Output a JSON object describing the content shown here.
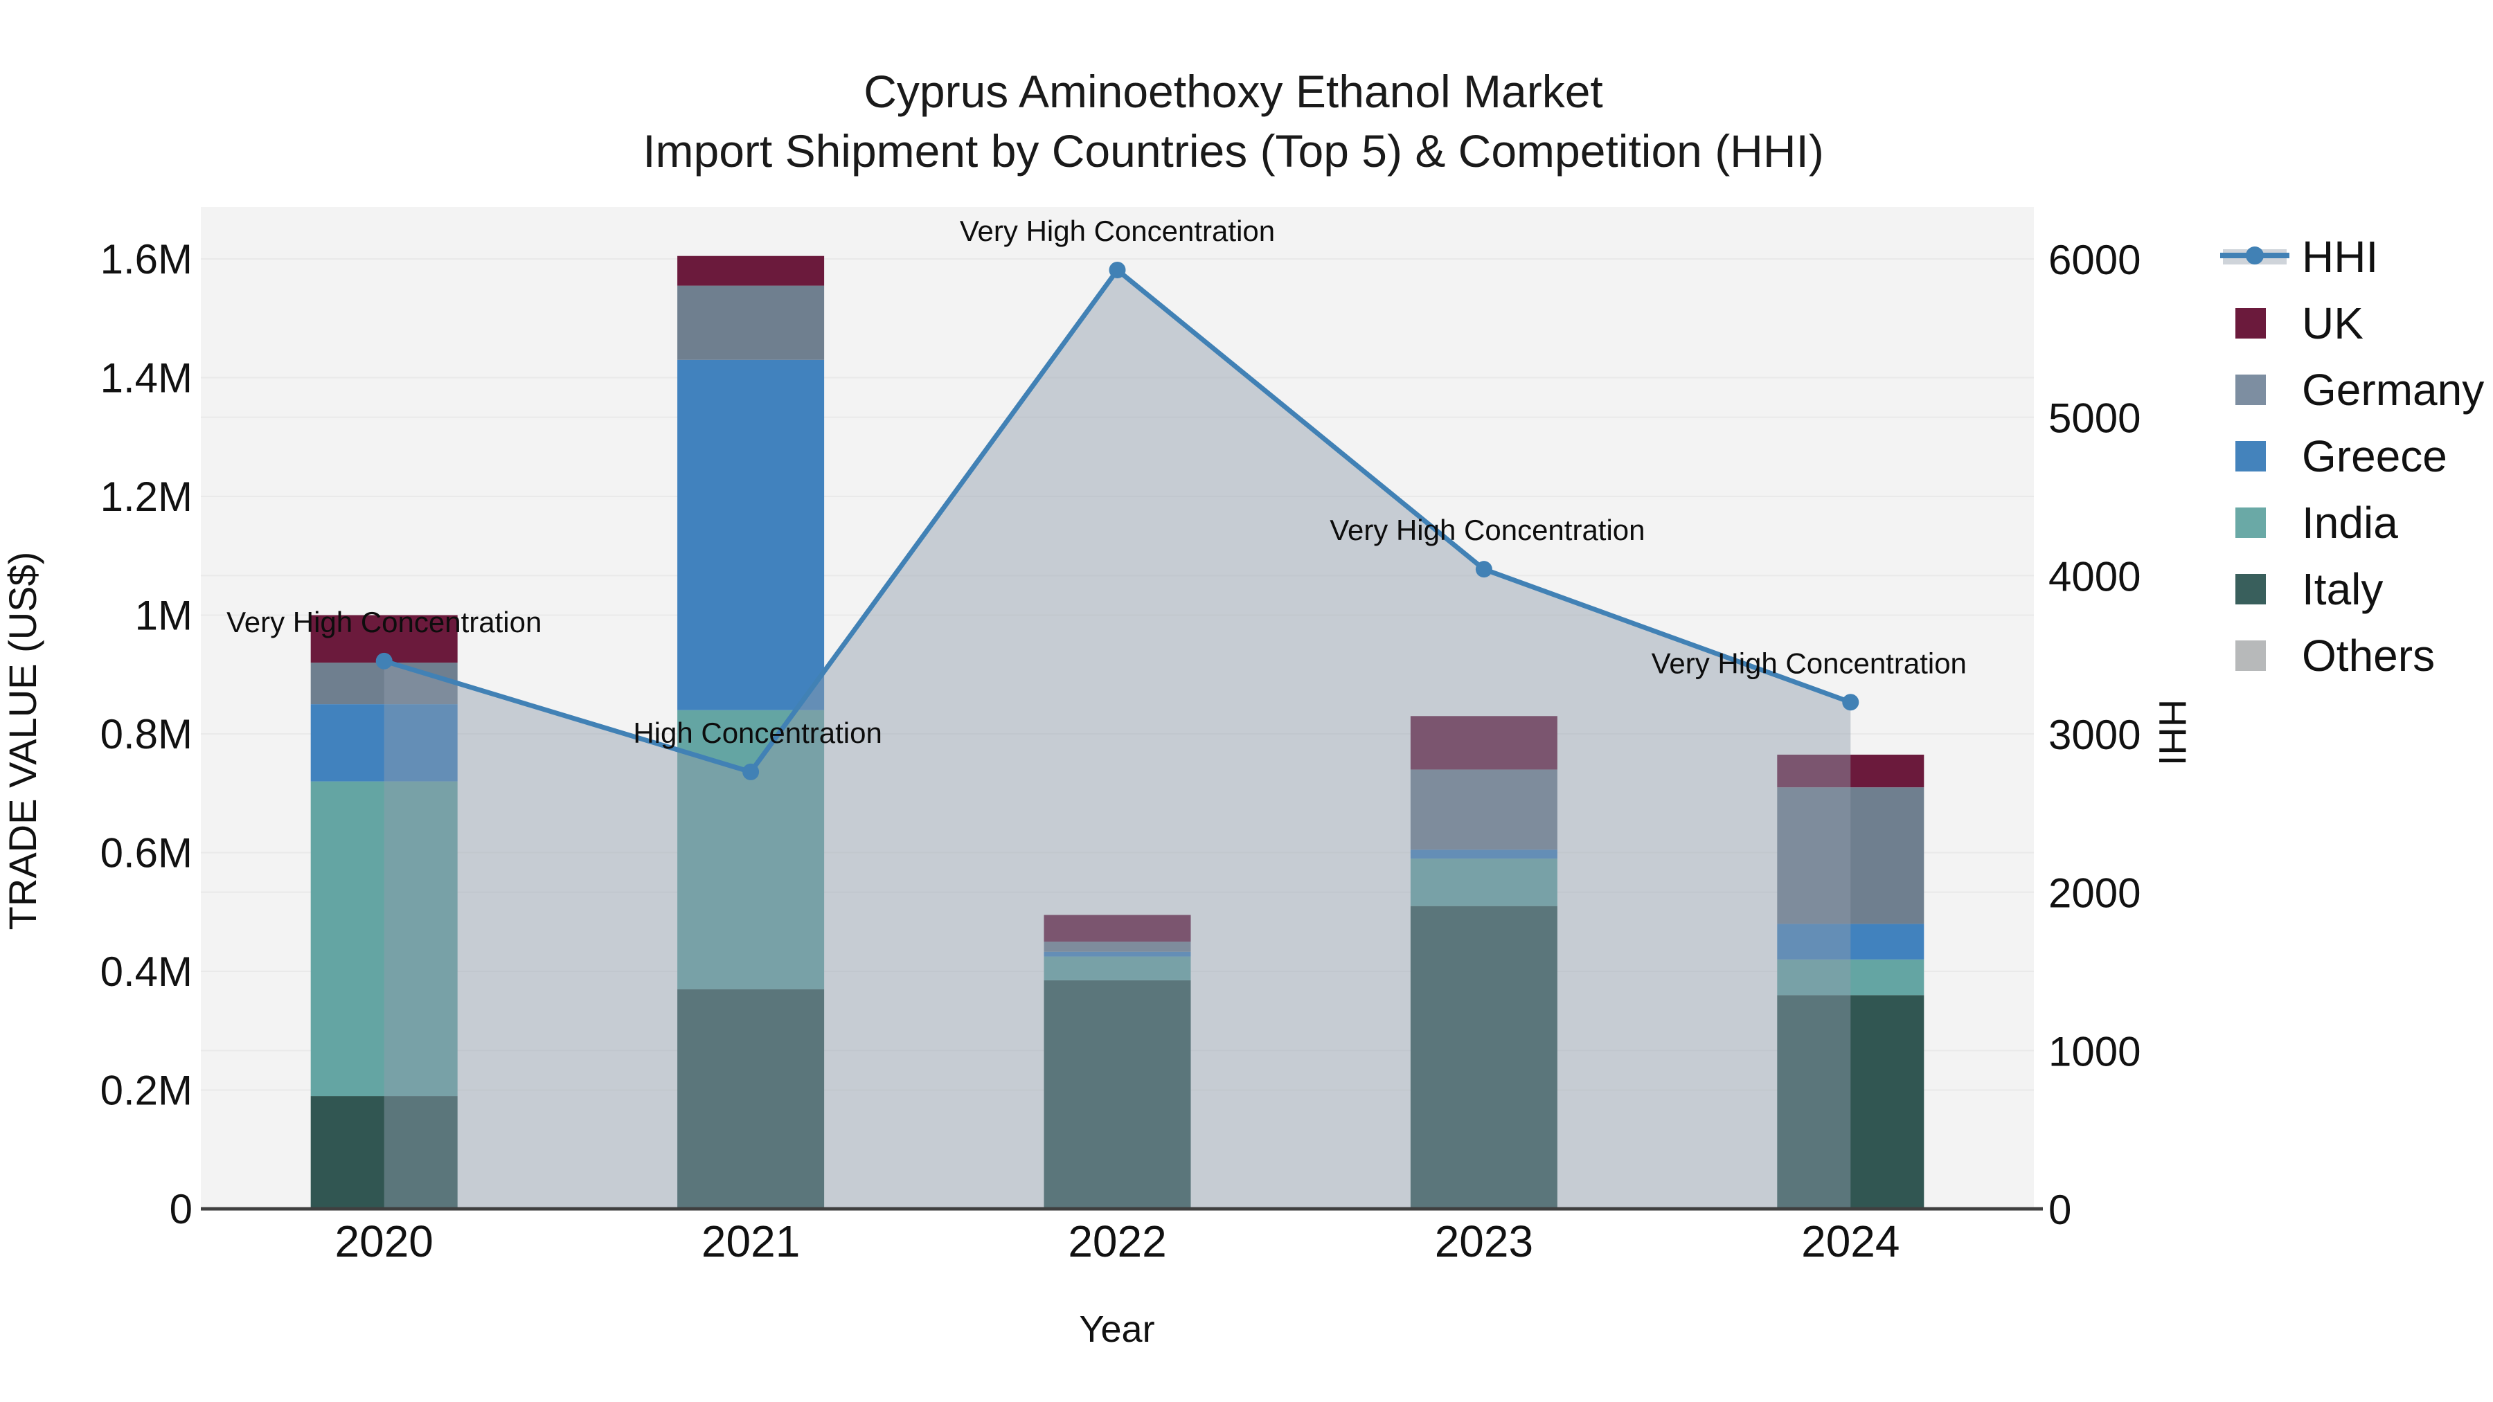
{
  "title": {
    "line1": "Cyprus Aminoethoxy Ethanol Market",
    "line2": "Import Shipment by Countries (Top 5) & Competition (HHI)"
  },
  "axes": {
    "x_title": "Year",
    "y_left_title": "TRADE VALUE (US$)",
    "y_right_title": "HHI",
    "y_left_ticks": [
      "0",
      "0.2M",
      "0.4M",
      "0.6M",
      "0.8M",
      "1M",
      "1.2M",
      "1.4M",
      "1.6M"
    ],
    "y_left_tick_values": [
      0,
      200000,
      400000,
      600000,
      800000,
      1000000,
      1200000,
      1400000,
      1600000
    ],
    "y_left_max": 1600000,
    "y_right_ticks": [
      "0",
      "1000",
      "2000",
      "3000",
      "4000",
      "5000",
      "6000"
    ],
    "y_right_tick_values": [
      0,
      1000,
      2000,
      3000,
      4000,
      5000,
      6000
    ],
    "y_right_max": 6000
  },
  "chart_data": {
    "type": "bar+line",
    "categories": [
      "2020",
      "2021",
      "2022",
      "2023",
      "2024"
    ],
    "stack_order": [
      "Italy",
      "India",
      "Greece",
      "Germany",
      "UK"
    ],
    "series": [
      {
        "name": "Italy",
        "color": "#315652",
        "values": [
          190000,
          370000,
          385000,
          510000,
          360000
        ]
      },
      {
        "name": "India",
        "color": "#64A5A3",
        "values": [
          530000,
          470000,
          40000,
          80000,
          60000
        ]
      },
      {
        "name": "Greece",
        "color": "#4182BE",
        "values": [
          130000,
          590000,
          8000,
          15000,
          60000
        ]
      },
      {
        "name": "Germany",
        "color": "#6F7F8F",
        "values": [
          70000,
          125000,
          17000,
          135000,
          230000
        ]
      },
      {
        "name": "UK",
        "color": "#6B1A3C",
        "values": [
          80000,
          50000,
          45000,
          90000,
          55000
        ]
      }
    ],
    "line_series": {
      "name": "HHI",
      "color": "#4181B5",
      "values": [
        3460,
        2760,
        5930,
        4040,
        3200
      ]
    },
    "annotations": [
      {
        "text": "Very High Concentration",
        "dx": 0
      },
      {
        "text": "High Concentration",
        "dx": 10
      },
      {
        "text": "Very High Concentration",
        "dx": 0
      },
      {
        "text": "Very High Concentration",
        "dx": 5
      },
      {
        "text": "Very High Concentration",
        "dx": -60
      }
    ],
    "legend": [
      {
        "label": "HHI",
        "color": "#4181B5",
        "type": "line"
      },
      {
        "label": "UK",
        "color": "#6B1A3C",
        "type": "swatch"
      },
      {
        "label": "Germany",
        "color": "#7D8EA1",
        "type": "swatch"
      },
      {
        "label": "Greece",
        "color": "#4483BC",
        "type": "swatch"
      },
      {
        "label": "India",
        "color": "#6AA9A6",
        "type": "swatch"
      },
      {
        "label": "Italy",
        "color": "#395F5C",
        "type": "swatch"
      },
      {
        "label": "Others",
        "color": "#B7B9BA",
        "type": "swatch"
      }
    ],
    "styles": {
      "plot_bg": "#f3f3f3",
      "grid_color": "#e9e9e9",
      "axis_line_color": "#3f3f3f",
      "area_fill": "rgba(145,158,173,0.45)",
      "hhi_line": "#4181B5"
    }
  }
}
